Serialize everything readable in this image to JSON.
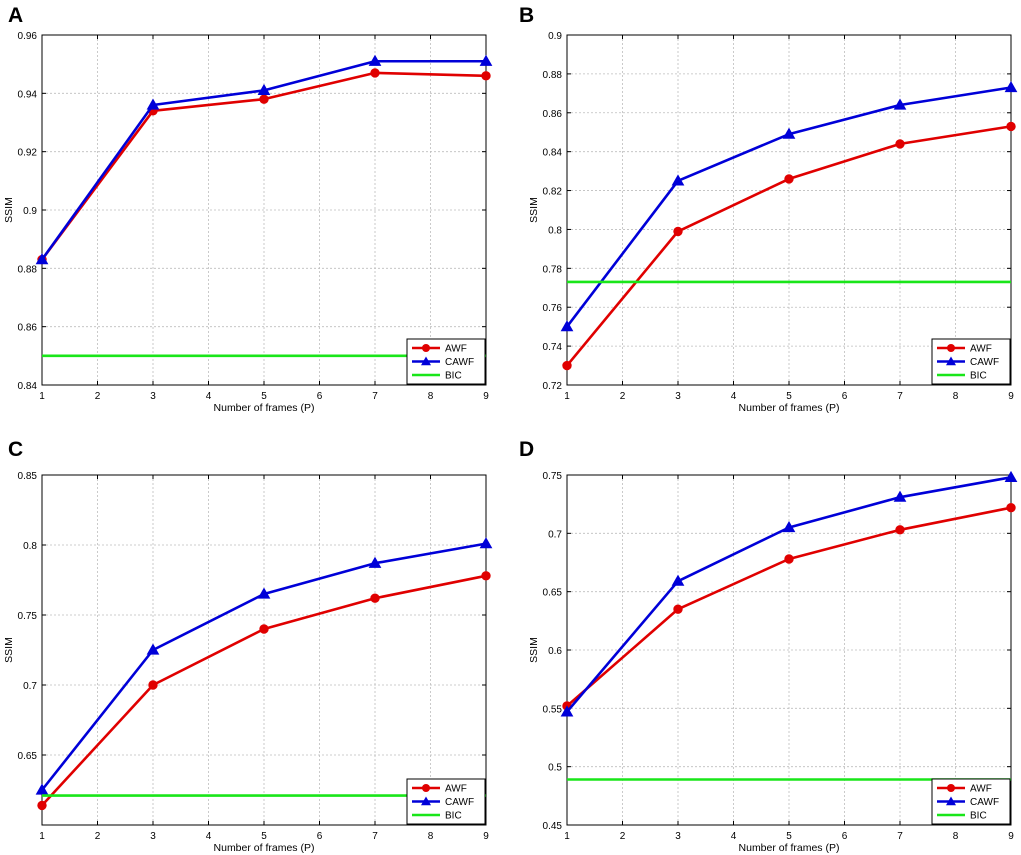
{
  "chart_data": [
    {
      "panel": "A",
      "type": "line",
      "xlabel": "Number of frames (P)",
      "ylabel": "SSIM",
      "xlim": [
        1,
        9
      ],
      "ylim": [
        0.84,
        0.96
      ],
      "xticks": [
        "1",
        "2",
        "3",
        "4",
        "5",
        "6",
        "7",
        "8",
        "9"
      ],
      "yticks": [
        "0.84",
        "0.86",
        "0.88",
        "0.9",
        "0.92",
        "0.94",
        "0.96"
      ],
      "grid": true,
      "legend_position": "bottom-right",
      "x": [
        1,
        3,
        5,
        7,
        9
      ],
      "series": [
        {
          "name": "AWF",
          "color": "#e00000",
          "marker": "circle",
          "values": [
            0.883,
            0.934,
            0.938,
            0.947,
            0.946
          ]
        },
        {
          "name": "CAWF",
          "color": "#0000d8",
          "marker": "triangle",
          "values": [
            0.883,
            0.936,
            0.941,
            0.951,
            0.951
          ]
        },
        {
          "name": "BIC",
          "color": "#19e619",
          "marker": "none",
          "values": [
            0.85,
            0.85,
            0.85,
            0.85,
            0.85
          ]
        }
      ]
    },
    {
      "panel": "B",
      "type": "line",
      "xlabel": "Number of frames (P)",
      "ylabel": "SSIM",
      "xlim": [
        1,
        9
      ],
      "ylim": [
        0.72,
        0.9
      ],
      "xticks": [
        "1",
        "2",
        "3",
        "4",
        "5",
        "6",
        "7",
        "8",
        "9"
      ],
      "yticks": [
        "0.72",
        "0.74",
        "0.76",
        "0.78",
        "0.8",
        "0.82",
        "0.84",
        "0.86",
        "0.88",
        "0.9"
      ],
      "grid": true,
      "legend_position": "bottom-right",
      "x": [
        1,
        3,
        5,
        7,
        9
      ],
      "series": [
        {
          "name": "AWF",
          "color": "#e00000",
          "marker": "circle",
          "values": [
            0.73,
            0.799,
            0.826,
            0.844,
            0.853
          ]
        },
        {
          "name": "CAWF",
          "color": "#0000d8",
          "marker": "triangle",
          "values": [
            0.75,
            0.825,
            0.849,
            0.864,
            0.873
          ]
        },
        {
          "name": "BIC",
          "color": "#19e619",
          "marker": "none",
          "values": [
            0.773,
            0.773,
            0.773,
            0.773,
            0.773
          ]
        }
      ]
    },
    {
      "panel": "C",
      "type": "line",
      "xlabel": "Number of frames (P)",
      "ylabel": "SSIM",
      "xlim": [
        1,
        9
      ],
      "ylim": [
        0.6,
        0.85
      ],
      "xticks": [
        "1",
        "2",
        "3",
        "4",
        "5",
        "6",
        "7",
        "8",
        "9"
      ],
      "yticks": [
        "0.65",
        "0.7",
        "0.75",
        "0.8",
        "0.85"
      ],
      "grid": true,
      "legend_position": "bottom-right",
      "x": [
        1,
        3,
        5,
        7,
        9
      ],
      "series": [
        {
          "name": "AWF",
          "color": "#e00000",
          "marker": "circle",
          "values": [
            0.614,
            0.7,
            0.74,
            0.762,
            0.778
          ]
        },
        {
          "name": "CAWF",
          "color": "#0000d8",
          "marker": "triangle",
          "values": [
            0.625,
            0.725,
            0.765,
            0.787,
            0.801
          ]
        },
        {
          "name": "BIC",
          "color": "#19e619",
          "marker": "none",
          "values": [
            0.621,
            0.621,
            0.621,
            0.621,
            0.621
          ]
        }
      ]
    },
    {
      "panel": "D",
      "type": "line",
      "xlabel": "Number of frames (P)",
      "ylabel": "SSIM",
      "xlim": [
        1,
        9
      ],
      "ylim": [
        0.45,
        0.75
      ],
      "xticks": [
        "1",
        "2",
        "3",
        "4",
        "5",
        "6",
        "7",
        "8",
        "9"
      ],
      "yticks": [
        "0.45",
        "0.5",
        "0.55",
        "0.6",
        "0.65",
        "0.7",
        "0.75"
      ],
      "grid": true,
      "legend_position": "bottom-right",
      "x": [
        1,
        3,
        5,
        7,
        9
      ],
      "series": [
        {
          "name": "AWF",
          "color": "#e00000",
          "marker": "circle",
          "values": [
            0.552,
            0.635,
            0.678,
            0.703,
            0.722
          ]
        },
        {
          "name": "CAWF",
          "color": "#0000d8",
          "marker": "triangle",
          "values": [
            0.547,
            0.659,
            0.705,
            0.731,
            0.748
          ]
        },
        {
          "name": "BIC",
          "color": "#19e619",
          "marker": "none",
          "values": [
            0.489,
            0.489,
            0.489,
            0.489,
            0.489
          ]
        }
      ]
    }
  ]
}
